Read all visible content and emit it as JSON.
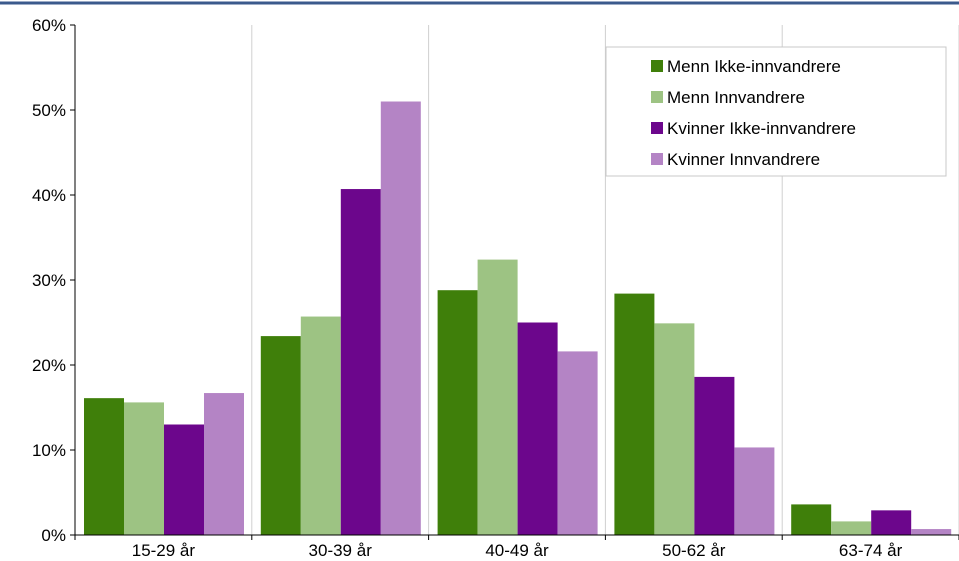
{
  "chart_data": {
    "type": "bar",
    "title": "",
    "xlabel": "",
    "ylabel": "",
    "categories": [
      "15-29 år",
      "30-39 år",
      "40-49 år",
      "50-62 år",
      "63-74 år"
    ],
    "ylim": [
      0,
      60
    ],
    "yticks": [
      0,
      10,
      20,
      30,
      40,
      50,
      60
    ],
    "ytick_labels": [
      "0%",
      "10%",
      "20%",
      "30%",
      "40%",
      "50%",
      "60%"
    ],
    "grid": "vertical",
    "legend_position": "top-right",
    "series": [
      {
        "name": "Menn Ikke-innvandrere",
        "color": "#3F7F0A",
        "values": [
          16.1,
          23.4,
          28.8,
          28.4,
          3.6
        ]
      },
      {
        "name": "Menn Innvandrere",
        "color": "#9DC383",
        "values": [
          15.6,
          25.7,
          32.4,
          24.9,
          1.6
        ]
      },
      {
        "name": "Kvinner Ikke-innvandrere",
        "color": "#6C068C",
        "values": [
          13.0,
          40.7,
          25.0,
          18.6,
          2.9
        ]
      },
      {
        "name": "Kvinner Innvandrere",
        "color": "#B484C5",
        "values": [
          16.7,
          51.0,
          21.6,
          10.3,
          0.7
        ]
      }
    ]
  },
  "colors": {
    "top_border": "#3B5A8C",
    "axis": "#000000",
    "gridline": "#D0D0D0"
  }
}
